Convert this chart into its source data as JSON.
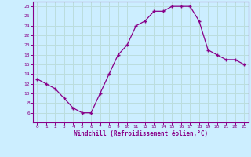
{
  "x": [
    0,
    1,
    2,
    3,
    4,
    5,
    6,
    7,
    8,
    9,
    10,
    11,
    12,
    13,
    14,
    15,
    16,
    17,
    18,
    19,
    20,
    21,
    22,
    23
  ],
  "y": [
    13,
    12,
    11,
    9,
    7,
    6,
    6,
    10,
    14,
    18,
    20,
    24,
    25,
    27,
    27,
    28,
    28,
    28,
    25,
    19,
    18,
    17,
    17,
    16
  ],
  "xlabel": "Windchill (Refroidissement éolien,°C)",
  "ylim": [
    4,
    29
  ],
  "xlim": [
    -0.5,
    23.5
  ],
  "yticks": [
    6,
    8,
    10,
    12,
    14,
    16,
    18,
    20,
    22,
    24,
    26,
    28
  ],
  "xticks": [
    0,
    1,
    2,
    3,
    4,
    5,
    6,
    7,
    8,
    9,
    10,
    11,
    12,
    13,
    14,
    15,
    16,
    17,
    18,
    19,
    20,
    21,
    22,
    23
  ],
  "line_color": "#880088",
  "marker": "+",
  "bg_color": "#cceeff",
  "grid_color": "#bbdddd",
  "label_color": "#880088",
  "tick_color": "#880088",
  "spine_color": "#880088"
}
